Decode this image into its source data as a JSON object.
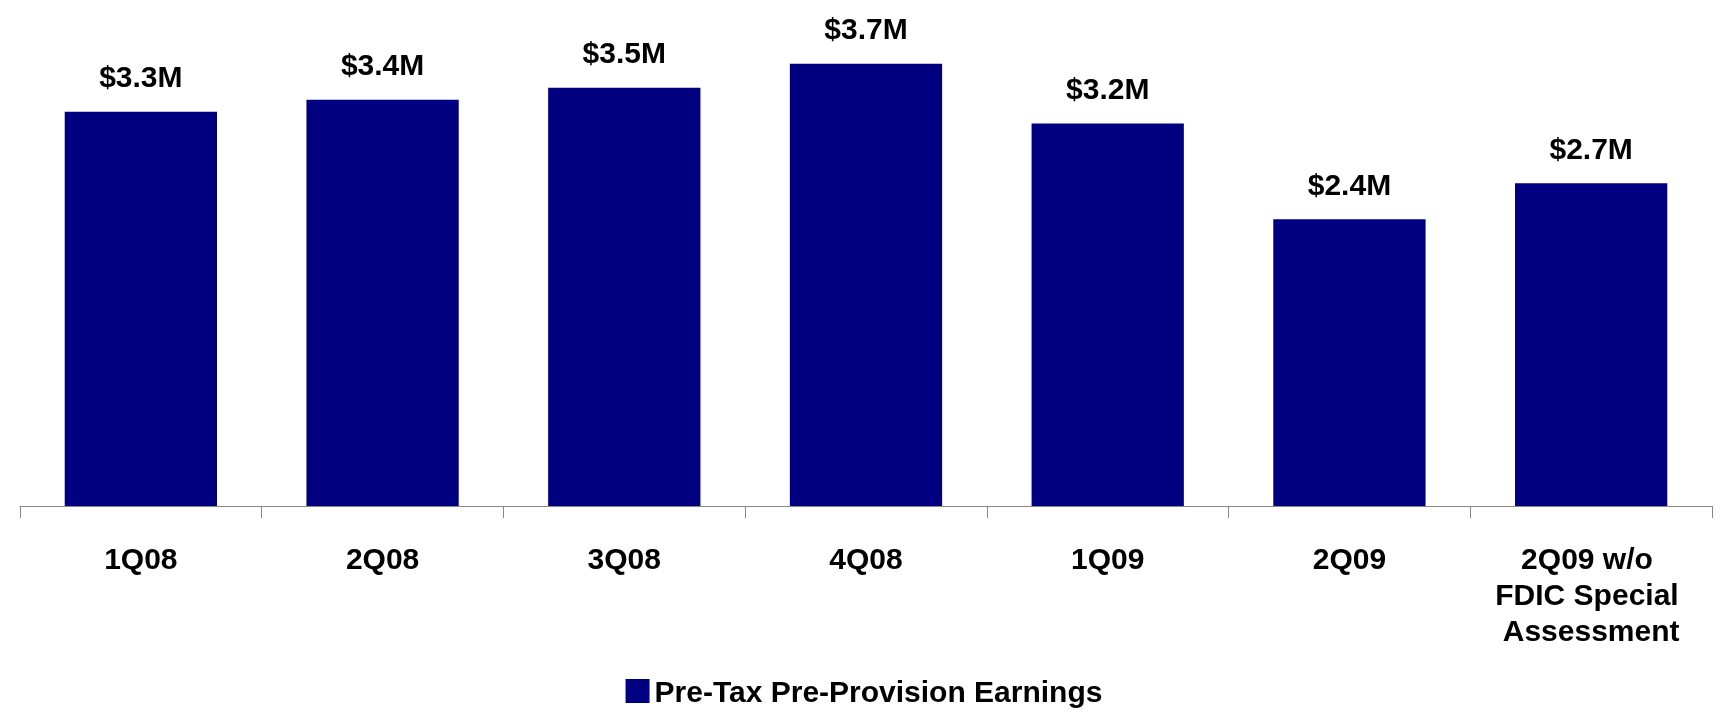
{
  "chart_data": {
    "type": "bar",
    "categories": [
      "1Q08",
      "2Q08",
      "3Q08",
      "4Q08",
      "1Q09",
      "2Q09",
      "2Q09 w/o FDIC Special Assessment"
    ],
    "series": [
      {
        "name": "Pre-Tax Pre-Provision Earnings",
        "color": "#000080",
        "values": [
          3.3,
          3.4,
          3.5,
          3.7,
          3.2,
          2.4,
          2.7
        ],
        "value_labels": [
          "$3.3M",
          "$3.4M",
          "$3.5M",
          "$3.7M",
          "$3.2M",
          "$2.4M",
          "$2.7M"
        ]
      }
    ],
    "legend": "bottom",
    "grid": false
  }
}
